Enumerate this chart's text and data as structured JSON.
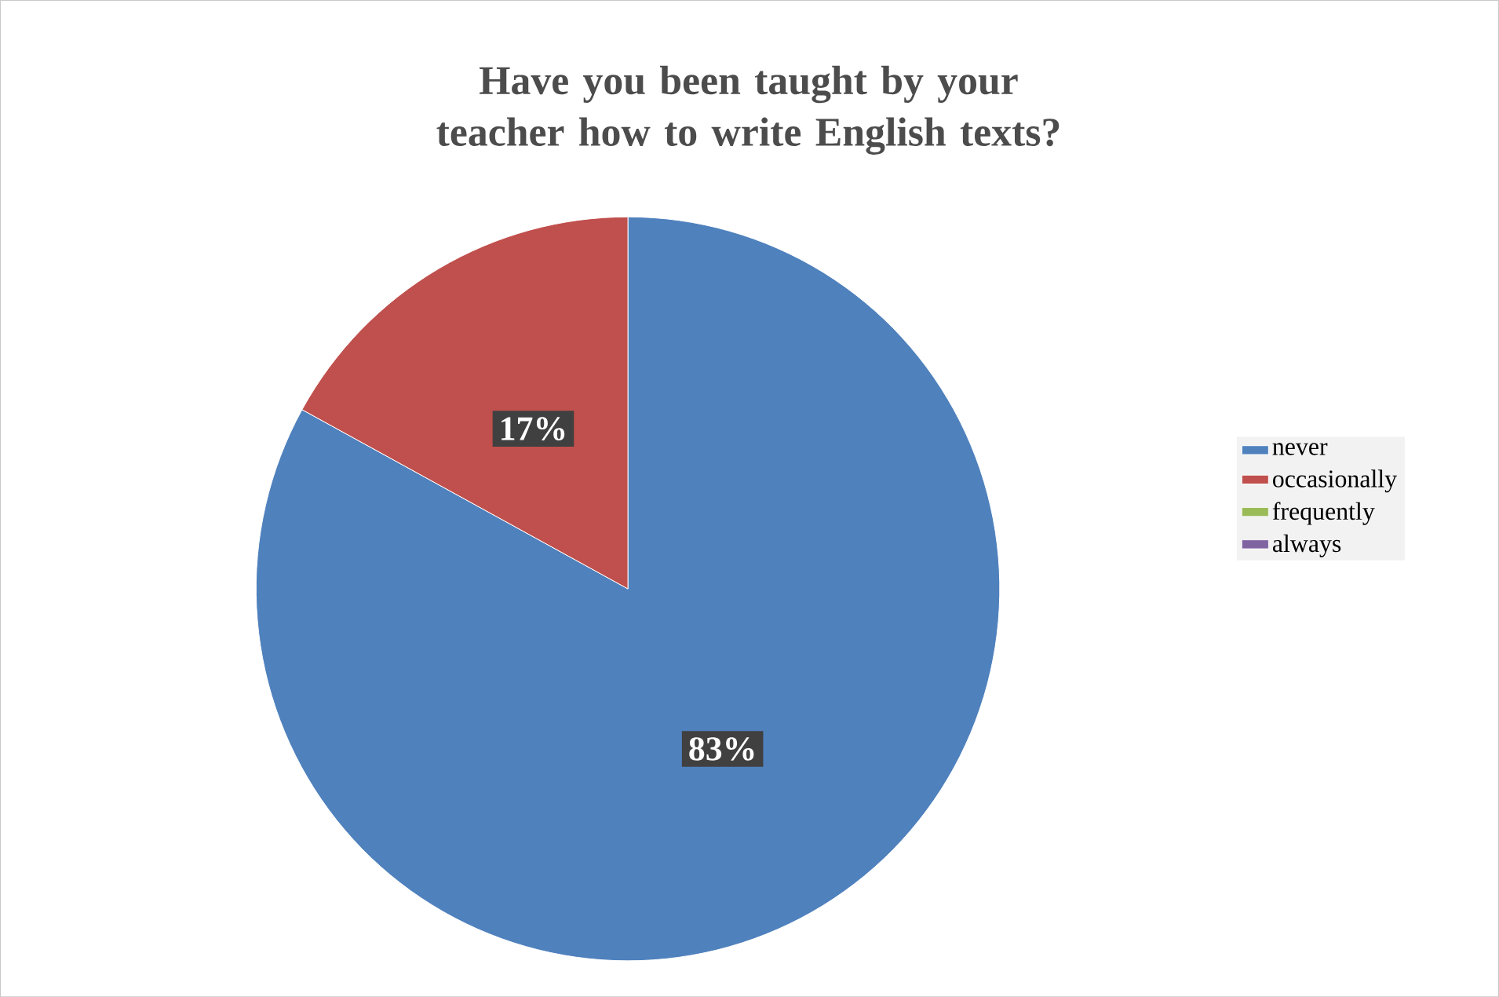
{
  "chart_data": {
    "type": "pie",
    "title": "Have you been taught by your teacher how to write English texts?",
    "categories": [
      "never",
      "occasionally",
      "frequently",
      "always"
    ],
    "values": [
      83,
      17,
      0,
      0
    ],
    "value_labels": [
      "83%",
      "17%",
      null,
      null
    ],
    "colors": [
      "#4f81bd",
      "#c0504d",
      "#9bbb59",
      "#8064a2"
    ],
    "legend": "right"
  }
}
